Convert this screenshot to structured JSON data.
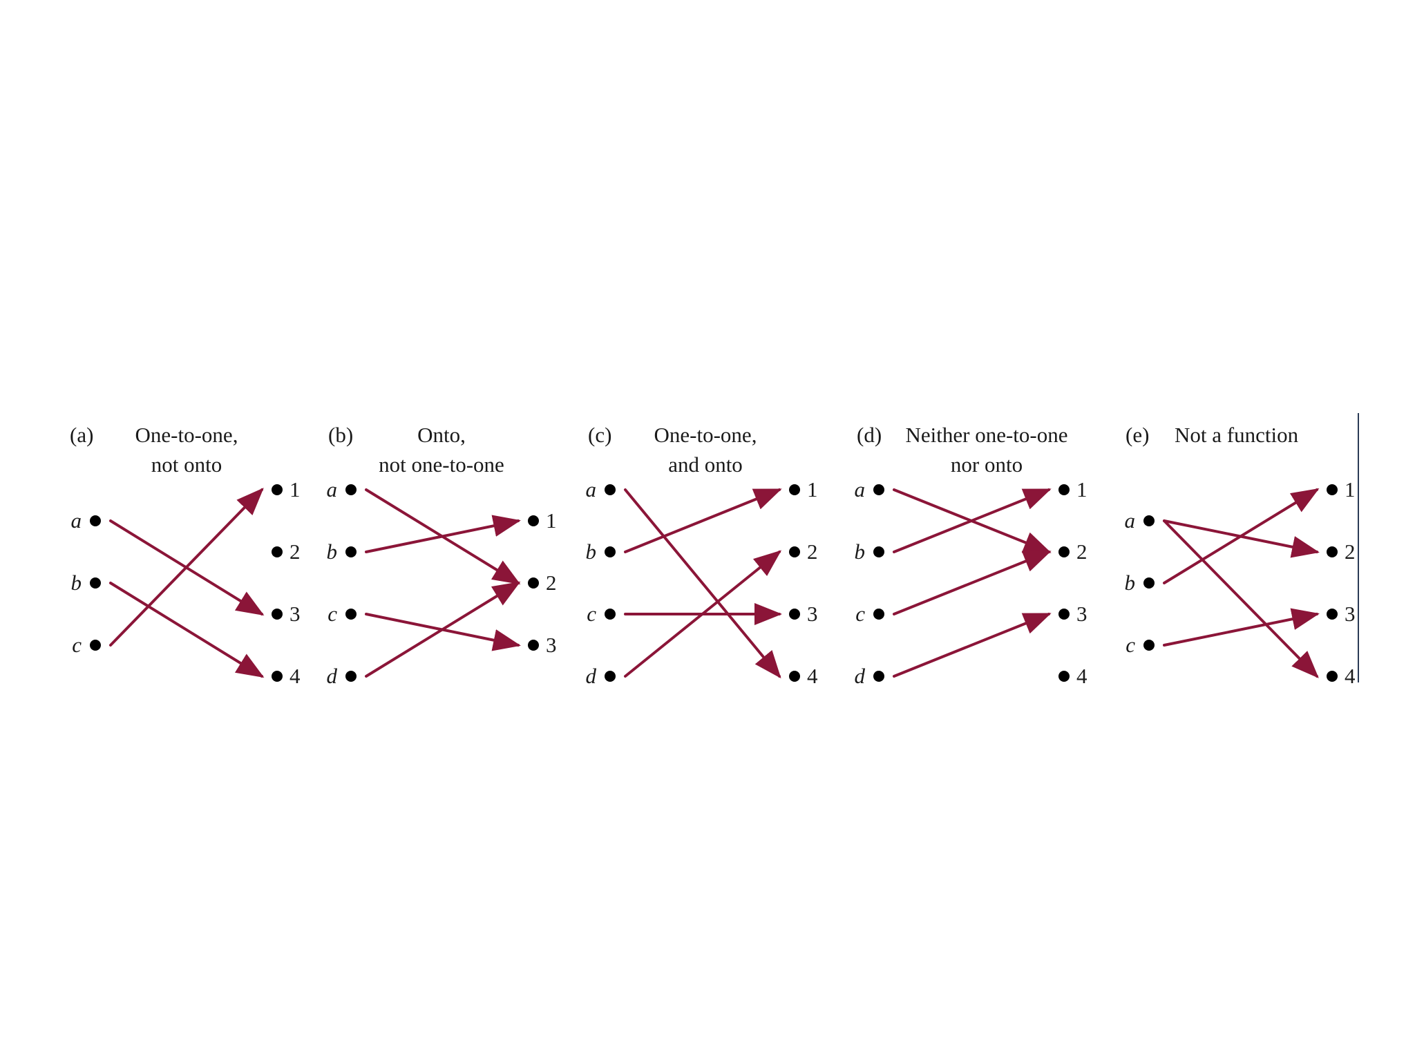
{
  "colors": {
    "arrow": "#8b1538",
    "dot": "#000000",
    "text": "#1a1a1a",
    "frame_edge": "#2a3a55"
  },
  "panels": [
    {
      "tag": "(a)",
      "caption": [
        "One-to-one,",
        "not onto"
      ],
      "domain": [
        "a",
        "b",
        "c"
      ],
      "codomain": [
        "1",
        "2",
        "3",
        "4"
      ],
      "mapping": [
        [
          "a",
          "3"
        ],
        [
          "b",
          "4"
        ],
        [
          "c",
          "1"
        ]
      ]
    },
    {
      "tag": "(b)",
      "caption": [
        "Onto,",
        "not one-to-one"
      ],
      "domain": [
        "a",
        "b",
        "c",
        "d"
      ],
      "codomain": [
        "1",
        "2",
        "3"
      ],
      "mapping": [
        [
          "a",
          "2"
        ],
        [
          "b",
          "1"
        ],
        [
          "c",
          "3"
        ],
        [
          "d",
          "2"
        ]
      ]
    },
    {
      "tag": "(c)",
      "caption": [
        "One-to-one,",
        "and onto"
      ],
      "domain": [
        "a",
        "b",
        "c",
        "d"
      ],
      "codomain": [
        "1",
        "2",
        "3",
        "4"
      ],
      "mapping": [
        [
          "a",
          "4"
        ],
        [
          "b",
          "1"
        ],
        [
          "c",
          "3"
        ],
        [
          "d",
          "2"
        ]
      ]
    },
    {
      "tag": "(d)",
      "caption": [
        "Neither one-to-one",
        "nor onto"
      ],
      "domain": [
        "a",
        "b",
        "c",
        "d"
      ],
      "codomain": [
        "1",
        "2",
        "3",
        "4"
      ],
      "mapping": [
        [
          "a",
          "2"
        ],
        [
          "b",
          "1"
        ],
        [
          "c",
          "2"
        ],
        [
          "d",
          "3"
        ]
      ]
    },
    {
      "tag": "(e)",
      "caption": [
        "Not a function"
      ],
      "domain": [
        "a",
        "b",
        "c"
      ],
      "codomain": [
        "1",
        "2",
        "3",
        "4"
      ],
      "mapping": [
        [
          "a",
          "2"
        ],
        [
          "a",
          "4"
        ],
        [
          "b",
          "1"
        ],
        [
          "c",
          "3"
        ]
      ]
    }
  ]
}
